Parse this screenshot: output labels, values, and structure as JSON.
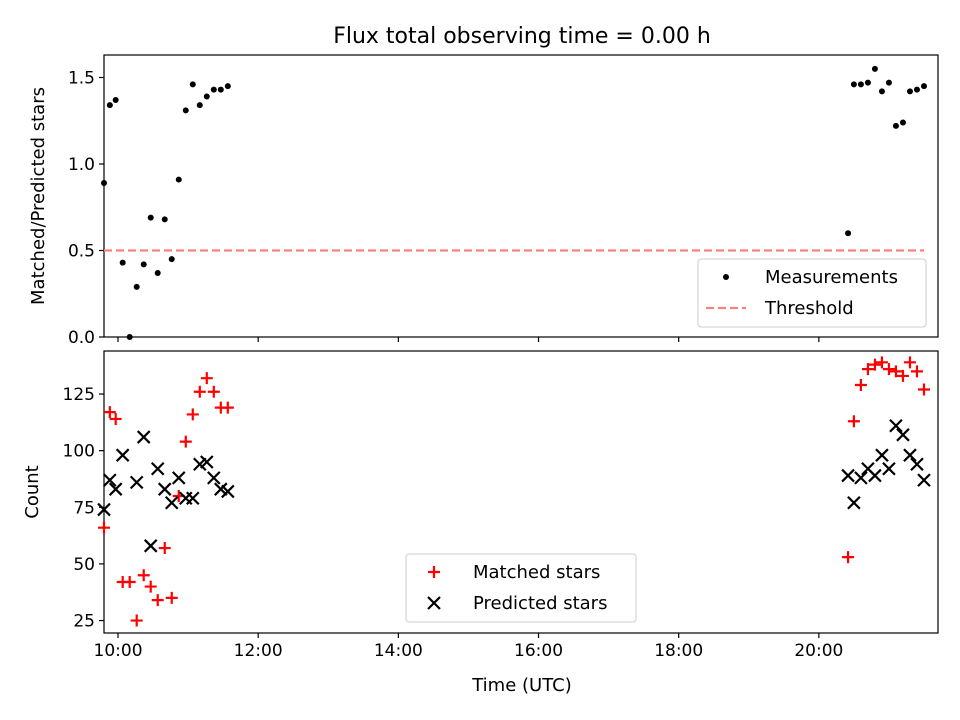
{
  "figure": {
    "title": "Flux total observing time = 0.00 h",
    "xlabel": "Time (UTC)"
  },
  "colors": {
    "measurement": "#000000",
    "threshold": "#ff7f7f",
    "matched": "#ff0000",
    "predicted": "#000000"
  },
  "chart_data": [
    {
      "type": "scatter",
      "ylabel": "Matched/Predicted stars",
      "xlim": [
        "09:48",
        "21:42"
      ],
      "ylim": [
        0,
        1.63
      ],
      "x_ticks": [
        "10:00",
        "12:00",
        "14:00",
        "16:00",
        "18:00",
        "20:00"
      ],
      "y_ticks": [
        "0.0",
        "0.5",
        "1.0",
        "1.5"
      ],
      "legend_position": "lower-right",
      "series": [
        {
          "name": "Measurements",
          "marker": "dot",
          "points": [
            [
              "09:48",
              0.89
            ],
            [
              "09:53",
              1.34
            ],
            [
              "09:58",
              1.37
            ],
            [
              "10:04",
              0.43
            ],
            [
              "10:10",
              0.0
            ],
            [
              "10:16",
              0.29
            ],
            [
              "10:22",
              0.42
            ],
            [
              "10:28",
              0.69
            ],
            [
              "10:34",
              0.37
            ],
            [
              "10:40",
              0.68
            ],
            [
              "10:46",
              0.45
            ],
            [
              "10:52",
              0.91
            ],
            [
              "10:58",
              1.31
            ],
            [
              "11:04",
              1.46
            ],
            [
              "11:10",
              1.34
            ],
            [
              "11:16",
              1.39
            ],
            [
              "11:22",
              1.43
            ],
            [
              "11:28",
              1.43
            ],
            [
              "11:34",
              1.45
            ],
            [
              "20:25",
              0.6
            ],
            [
              "20:30",
              1.46
            ],
            [
              "20:36",
              1.46
            ],
            [
              "20:42",
              1.47
            ],
            [
              "20:48",
              1.55
            ],
            [
              "20:54",
              1.42
            ],
            [
              "21:00",
              1.47
            ],
            [
              "21:06",
              1.22
            ],
            [
              "21:12",
              1.24
            ],
            [
              "21:18",
              1.42
            ],
            [
              "21:24",
              1.43
            ],
            [
              "21:30",
              1.45
            ]
          ]
        },
        {
          "name": "Threshold",
          "style": "dashed",
          "points": [
            [
              "09:48",
              0.5
            ],
            [
              "21:30",
              0.5
            ]
          ]
        }
      ]
    },
    {
      "type": "scatter",
      "ylabel": "Count",
      "xlim": [
        "09:48",
        "21:42"
      ],
      "ylim": [
        19.5,
        144
      ],
      "x_ticks": [
        "10:00",
        "12:00",
        "14:00",
        "16:00",
        "18:00",
        "20:00"
      ],
      "y_ticks": [
        "25",
        "50",
        "75",
        "100",
        "125"
      ],
      "legend_position": "lower-center",
      "series": [
        {
          "name": "Matched stars",
          "marker": "plus",
          "points": [
            [
              "09:48",
              66
            ],
            [
              "09:53",
              117
            ],
            [
              "09:58",
              114
            ],
            [
              "10:04",
              42
            ],
            [
              "10:10",
              42
            ],
            [
              "10:16",
              25
            ],
            [
              "10:22",
              45
            ],
            [
              "10:28",
              40
            ],
            [
              "10:34",
              34
            ],
            [
              "10:40",
              57
            ],
            [
              "10:46",
              35
            ],
            [
              "10:52",
              80
            ],
            [
              "10:58",
              104
            ],
            [
              "11:04",
              116
            ],
            [
              "11:10",
              126
            ],
            [
              "11:16",
              132
            ],
            [
              "11:22",
              126
            ],
            [
              "11:28",
              119
            ],
            [
              "11:34",
              119
            ],
            [
              "20:25",
              53
            ],
            [
              "20:30",
              113
            ],
            [
              "20:36",
              129
            ],
            [
              "20:42",
              136
            ],
            [
              "20:48",
              138
            ],
            [
              "20:54",
              139
            ],
            [
              "21:00",
              136
            ],
            [
              "21:06",
              135
            ],
            [
              "21:12",
              133
            ],
            [
              "21:18",
              139
            ],
            [
              "21:24",
              135
            ],
            [
              "21:30",
              127
            ]
          ]
        },
        {
          "name": "Predicted stars",
          "marker": "x",
          "points": [
            [
              "09:48",
              74
            ],
            [
              "09:53",
              87
            ],
            [
              "09:58",
              83
            ],
            [
              "10:04",
              98
            ],
            [
              "10:16",
              86
            ],
            [
              "10:22",
              106
            ],
            [
              "10:28",
              58
            ],
            [
              "10:34",
              92
            ],
            [
              "10:40",
              83
            ],
            [
              "10:46",
              77
            ],
            [
              "10:52",
              88
            ],
            [
              "10:58",
              79
            ],
            [
              "11:04",
              79
            ],
            [
              "11:10",
              94
            ],
            [
              "11:16",
              95
            ],
            [
              "11:22",
              88
            ],
            [
              "11:28",
              83
            ],
            [
              "11:34",
              82
            ],
            [
              "20:25",
              89
            ],
            [
              "20:30",
              77
            ],
            [
              "20:36",
              88
            ],
            [
              "20:42",
              92
            ],
            [
              "20:48",
              89
            ],
            [
              "20:54",
              98
            ],
            [
              "21:00",
              92
            ],
            [
              "21:06",
              111
            ],
            [
              "21:12",
              107
            ],
            [
              "21:18",
              98
            ],
            [
              "21:24",
              94
            ],
            [
              "21:30",
              87
            ]
          ]
        }
      ]
    }
  ]
}
